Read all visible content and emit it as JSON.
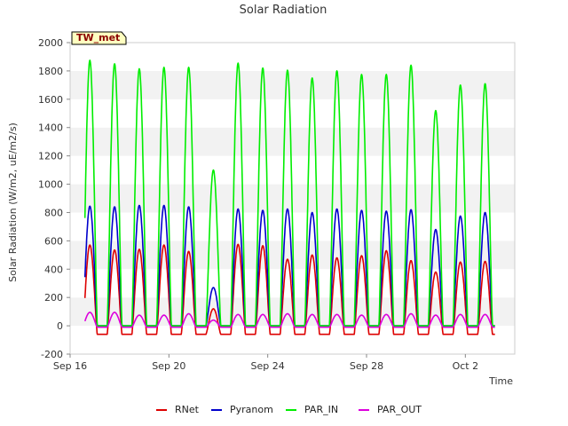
{
  "chart_data": {
    "type": "line",
    "title": "Solar Radiation",
    "xlabel": "Time",
    "ylabel": "Solar Radiation (W/m2, uE/m2/s)",
    "station_badge": "TW_met",
    "ylim": [
      -200,
      2000
    ],
    "y_ticks": [
      -200,
      0,
      200,
      400,
      600,
      800,
      1000,
      1200,
      1400,
      1600,
      1800,
      2000
    ],
    "x_range_days": [
      0,
      18
    ],
    "x_ticks": [
      {
        "day": 0,
        "label": "Sep 16"
      },
      {
        "day": 4,
        "label": "Sep 20"
      },
      {
        "day": 8,
        "label": "Sep 24"
      },
      {
        "day": 12,
        "label": "Sep 28"
      },
      {
        "day": 16,
        "label": "Oct 2"
      }
    ],
    "grid": "horizontal bands",
    "legend_position": "bottom",
    "daily_peak_days": [
      16.8,
      17.8,
      18.8,
      19.8,
      20.8,
      21.8,
      22.8,
      23.8,
      24.8,
      25.8,
      26.8,
      27.8,
      28.8,
      29.8,
      30.8,
      31.8,
      32.8
    ],
    "series": [
      {
        "name": "RNet",
        "color": "#dd0000",
        "night_value": -60,
        "daily_peaks": [
          570,
          535,
          540,
          570,
          525,
          120,
          575,
          565,
          470,
          500,
          480,
          495,
          530,
          460,
          380,
          450,
          455
        ]
      },
      {
        "name": "Pyranom",
        "color": "#0000cc",
        "night_value": 0,
        "daily_peaks": [
          845,
          840,
          850,
          850,
          840,
          270,
          825,
          815,
          825,
          800,
          825,
          815,
          810,
          820,
          680,
          775,
          800
        ]
      },
      {
        "name": "PAR_IN",
        "color": "#00ee00",
        "night_value": 0,
        "daily_peaks": [
          1875,
          1850,
          1815,
          1825,
          1825,
          1100,
          1855,
          1820,
          1805,
          1750,
          1800,
          1775,
          1775,
          1840,
          1520,
          1700,
          1710
        ]
      },
      {
        "name": "PAR_OUT",
        "color": "#dd00dd",
        "night_value": -10,
        "daily_peaks": [
          95,
          95,
          75,
          75,
          85,
          40,
          80,
          80,
          85,
          80,
          80,
          75,
          80,
          85,
          75,
          80,
          80
        ]
      }
    ]
  }
}
